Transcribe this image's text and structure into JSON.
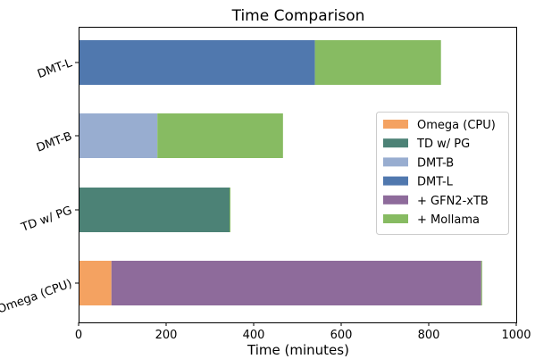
{
  "chart_data": {
    "type": "bar",
    "orientation": "horizontal",
    "stacked": true,
    "title": "Time Comparison",
    "xlabel": "Time (minutes)",
    "ylabel": "",
    "xlim": [
      0,
      1000
    ],
    "xticks": [
      0,
      200,
      400,
      600,
      800,
      1000
    ],
    "grid": false,
    "legend_position": "right",
    "categories": [
      "DMT-L",
      "DMT-B",
      "TD w/ PG",
      "Omega (CPU)"
    ],
    "legend": [
      {
        "name": "Omega (CPU)",
        "color": "#f4a261"
      },
      {
        "name": "TD w/ PG",
        "color": "#4c8276"
      },
      {
        "name": "DMT-B",
        "color": "#98add0"
      },
      {
        "name": "DMT-L",
        "color": "#5078ae"
      },
      {
        "name": "+ GFN2-xTB",
        "color": "#8e6b9b"
      },
      {
        "name": "+ Mollama",
        "color": "#87bb62"
      }
    ],
    "bars": [
      {
        "category": "DMT-L",
        "segments": [
          {
            "series": "DMT-L",
            "value": 540
          },
          {
            "series": "+ Mollama",
            "value": 288
          }
        ]
      },
      {
        "category": "DMT-B",
        "segments": [
          {
            "series": "DMT-B",
            "value": 180
          },
          {
            "series": "+ Mollama",
            "value": 287
          }
        ]
      },
      {
        "category": "TD w/ PG",
        "segments": [
          {
            "series": "TD w/ PG",
            "value": 345
          },
          {
            "series": "+ Mollama",
            "value": 2
          }
        ]
      },
      {
        "category": "Omega (CPU)",
        "segments": [
          {
            "series": "Omega (CPU)",
            "value": 75
          },
          {
            "series": "+ GFN2-xTB",
            "value": 845
          },
          {
            "series": "+ Mollama",
            "value": 2
          }
        ]
      }
    ]
  }
}
